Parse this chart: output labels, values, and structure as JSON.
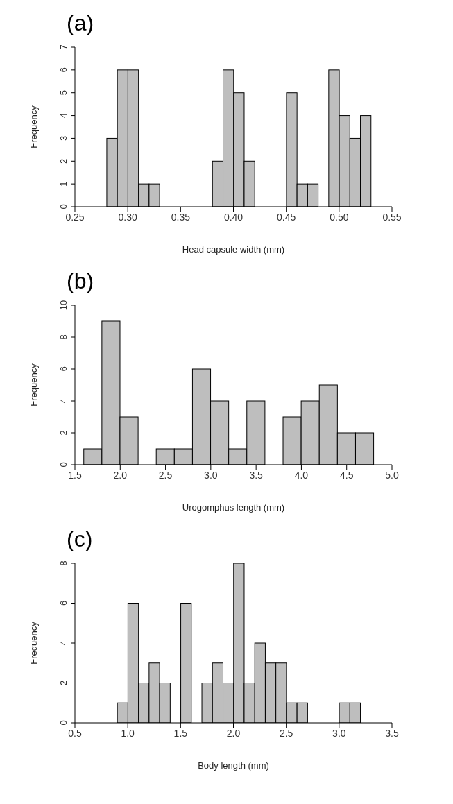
{
  "chart_data": [
    {
      "type": "histogram",
      "title": "(a)",
      "xlabel": "Head capsule width (mm)",
      "ylabel": "Frequency",
      "color": "#bebebe",
      "bins": [
        0.28,
        0.29,
        0.3,
        0.31,
        0.32,
        0.33,
        0.34,
        0.35,
        0.36,
        0.37,
        0.38,
        0.39,
        0.4,
        0.41,
        0.42,
        0.43,
        0.44,
        0.45,
        0.46,
        0.47,
        0.48,
        0.49,
        0.5,
        0.51,
        0.52,
        0.53
      ],
      "values": [
        3,
        6,
        6,
        1,
        1,
        0,
        0,
        0,
        0,
        0,
        2,
        6,
        5,
        2,
        0,
        0,
        0,
        5,
        1,
        1,
        0,
        6,
        4,
        3,
        4
      ],
      "xlim": [
        0.25,
        0.55
      ],
      "xticks": [
        {
          "value": 0.25,
          "label": "0.25"
        },
        {
          "value": 0.3,
          "label": "0.30"
        },
        {
          "value": 0.35,
          "label": "0.35"
        },
        {
          "value": 0.4,
          "label": "0.40"
        },
        {
          "value": 0.45,
          "label": "0.45"
        },
        {
          "value": 0.5,
          "label": "0.50"
        },
        {
          "value": 0.55,
          "label": "0.55"
        }
      ],
      "ylim": [
        0,
        7
      ],
      "yticks": [
        0,
        1,
        2,
        3,
        4,
        5,
        6,
        7
      ],
      "grid": false
    },
    {
      "type": "histogram",
      "title": "(b)",
      "xlabel": "Urogomphus length (mm)",
      "ylabel": "Frequency",
      "color": "#bebebe",
      "bins": [
        1.6,
        1.8,
        2.0,
        2.2,
        2.4,
        2.6,
        2.8,
        3.0,
        3.2,
        3.4,
        3.6,
        3.8,
        4.0,
        4.2,
        4.4,
        4.6,
        4.8
      ],
      "values": [
        1,
        9,
        3,
        0,
        1,
        1,
        6,
        4,
        1,
        4,
        0,
        3,
        4,
        5,
        2,
        2
      ],
      "xlim": [
        1.5,
        5.0
      ],
      "xticks": [
        {
          "value": 1.5,
          "label": "1.5"
        },
        {
          "value": 2,
          "label": "2.0"
        },
        {
          "value": 2.5,
          "label": "2.5"
        },
        {
          "value": 3,
          "label": "3.0"
        },
        {
          "value": 3.5,
          "label": "3.5"
        },
        {
          "value": 4,
          "label": "4.0"
        },
        {
          "value": 4.5,
          "label": "4.5"
        },
        {
          "value": 5,
          "label": "5.0"
        }
      ],
      "ylim": [
        0,
        10
      ],
      "yticks": [
        0,
        2,
        4,
        6,
        8,
        10
      ],
      "grid": false
    },
    {
      "type": "histogram",
      "title": "(c)",
      "xlabel": "Body length (mm)",
      "ylabel": "Frequency",
      "color": "#bebebe",
      "bins": [
        0.9,
        1.0,
        1.1,
        1.2,
        1.3,
        1.4,
        1.5,
        1.6,
        1.7,
        1.8,
        1.9,
        2.0,
        2.1,
        2.2,
        2.3,
        2.4,
        2.5,
        2.6,
        2.7,
        2.8,
        2.9,
        3.0,
        3.1,
        3.2
      ],
      "values": [
        1,
        6,
        2,
        3,
        2,
        0,
        6,
        0,
        2,
        3,
        2,
        8,
        2,
        4,
        3,
        3,
        1,
        1,
        0,
        0,
        0,
        1,
        1
      ],
      "xlim": [
        0.5,
        3.5
      ],
      "xticks": [
        {
          "value": 0.5,
          "label": "0.5"
        },
        {
          "value": 1,
          "label": "1.0"
        },
        {
          "value": 1.5,
          "label": "1.5"
        },
        {
          "value": 2,
          "label": "2.0"
        },
        {
          "value": 2.5,
          "label": "2.5"
        },
        {
          "value": 3,
          "label": "3.0"
        },
        {
          "value": 3.5,
          "label": "3.5"
        }
      ],
      "ylim": [
        0,
        8
      ],
      "yticks": [
        0,
        2,
        4,
        6,
        8
      ],
      "grid": false
    }
  ]
}
